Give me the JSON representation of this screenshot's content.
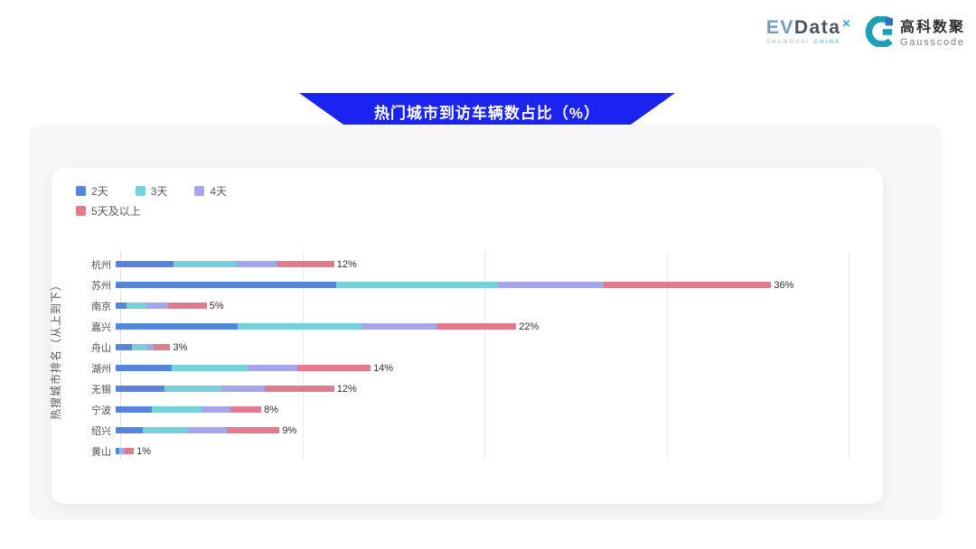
{
  "header": {
    "evdata_logo": {
      "text_ev": "EV",
      "text_data": "Data",
      "text_sup": "✕",
      "subtext_shanghai": "SHANGHAI",
      "subtext_china": "CHINA"
    },
    "gausscode_logo": {
      "name_zh": "高科数聚",
      "name_en": "Gausscode",
      "icon_teal": "#1ea0b4",
      "icon_blue": "#2f72b8"
    }
  },
  "banner": {
    "title": "热门城市到访车辆数占比（%）",
    "color": "#1a23ef"
  },
  "chart_data": {
    "type": "bar",
    "orientation": "horizontal",
    "stacked": true,
    "title": "热门城市到访车辆数占比（%）",
    "xlabel": "",
    "ylabel": "热搜城市排名（从上到下）",
    "xlim": [
      0,
      40
    ],
    "grid": true,
    "gridlines_percent": [
      10,
      20,
      30,
      40
    ],
    "legend_position": "top-left",
    "categories": [
      "杭州",
      "苏州",
      "南京",
      "嘉兴",
      "舟山",
      "湖州",
      "无锡",
      "宁波",
      "绍兴",
      "黄山"
    ],
    "series": [
      {
        "name": "2天",
        "color": "#5785da",
        "values": [
          3.2,
          12.1,
          0.6,
          6.7,
          0.9,
          3.1,
          2.7,
          2.0,
          1.5,
          0.2
        ]
      },
      {
        "name": "3天",
        "color": "#76d1dd",
        "values": [
          3.4,
          8.9,
          1.1,
          6.8,
          0.8,
          4.2,
          3.1,
          2.7,
          2.4,
          0.1
        ]
      },
      {
        "name": "4天",
        "color": "#a5a5ec",
        "values": [
          2.3,
          5.8,
          1.2,
          4.1,
          0.4,
          2.7,
          2.4,
          1.6,
          2.2,
          0.2
        ]
      },
      {
        "name": "5天及以上",
        "color": "#e07a8d",
        "values": [
          3.1,
          9.2,
          2.1,
          4.4,
          0.9,
          4.0,
          3.8,
          1.7,
          2.9,
          0.5
        ]
      }
    ],
    "totals_labels": [
      "12%",
      "36%",
      "5%",
      "22%",
      "3%",
      "14%",
      "12%",
      "8%",
      "9%",
      "1%"
    ]
  }
}
